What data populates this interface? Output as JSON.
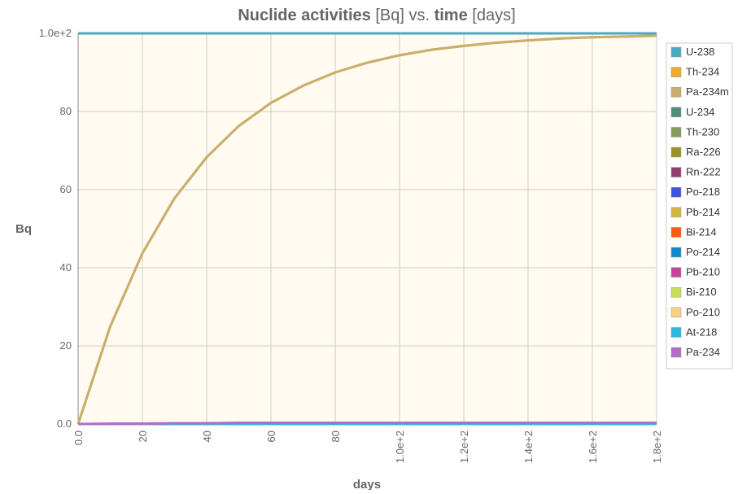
{
  "chart_data": {
    "type": "line",
    "title": [
      "Nuclide activities",
      "[Bq]",
      "vs.",
      "time",
      "[days]"
    ],
    "x_label": "days",
    "y_label": "Bq",
    "x": [
      0,
      10,
      20,
      30,
      40,
      50,
      60,
      70,
      80,
      90,
      100,
      110,
      120,
      130,
      140,
      150,
      160,
      170,
      180
    ],
    "xlim": [
      0,
      180
    ],
    "ylim": [
      0,
      100
    ],
    "xticks": [
      {
        "value": 0,
        "label": "0.0"
      },
      20,
      40,
      60,
      80,
      {
        "value": 100,
        "label": "1.0e+2"
      },
      {
        "value": 120,
        "label": "1.2e+2"
      },
      {
        "value": 140,
        "label": "1.4e+2"
      },
      {
        "value": 160,
        "label": "1.6e+2"
      },
      {
        "value": 180,
        "label": "1.8e+2"
      }
    ],
    "yticks": [
      {
        "value": 0,
        "label": "0.0"
      },
      20,
      40,
      60,
      80,
      {
        "value": 100,
        "label": "1.0e+2"
      }
    ],
    "grid": true,
    "legend": "right",
    "series": [
      {
        "name": "U-238",
        "color": "#4aa9c0",
        "values": [
          100,
          100,
          100,
          100,
          100,
          100,
          100,
          100,
          100,
          100,
          100,
          100,
          100,
          100,
          100,
          100,
          100,
          100,
          100
        ]
      },
      {
        "name": "Th-234",
        "color": "#f0a830",
        "values": [
          0,
          25.0,
          43.7,
          57.8,
          68.3,
          76.3,
          82.2,
          86.6,
          90.0,
          92.5,
          94.4,
          95.8,
          96.8,
          97.6,
          98.2,
          98.7,
          99.0,
          99.2,
          99.4
        ]
      },
      {
        "name": "Pa-234m",
        "color": "#c9ae6f",
        "values": [
          0,
          25.0,
          43.7,
          57.8,
          68.3,
          76.3,
          82.2,
          86.6,
          90.0,
          92.5,
          94.4,
          95.8,
          96.8,
          97.6,
          98.2,
          98.7,
          99.0,
          99.2,
          99.4
        ]
      },
      {
        "name": "U-234",
        "color": "#4e8f79",
        "values": [
          0,
          0,
          0,
          0,
          0,
          0,
          0,
          0,
          0,
          0,
          0,
          0,
          0,
          0,
          0,
          0,
          0,
          0,
          0
        ]
      },
      {
        "name": "Th-230",
        "color": "#889a5e",
        "values": [
          0,
          0,
          0,
          0,
          0,
          0,
          0,
          0,
          0,
          0,
          0,
          0,
          0,
          0,
          0,
          0,
          0,
          0,
          0
        ]
      },
      {
        "name": "Ra-226",
        "color": "#9a9228",
        "values": [
          0,
          0,
          0,
          0,
          0,
          0,
          0,
          0,
          0,
          0,
          0,
          0,
          0,
          0,
          0,
          0,
          0,
          0,
          0
        ]
      },
      {
        "name": "Rn-222",
        "color": "#923e6e",
        "values": [
          0,
          0,
          0,
          0,
          0,
          0,
          0,
          0,
          0,
          0,
          0,
          0,
          0,
          0,
          0,
          0,
          0,
          0,
          0
        ]
      },
      {
        "name": "Po-218",
        "color": "#4055d9",
        "values": [
          0,
          0,
          0,
          0,
          0,
          0,
          0,
          0,
          0,
          0,
          0,
          0,
          0,
          0,
          0,
          0,
          0,
          0,
          0
        ]
      },
      {
        "name": "Pb-214",
        "color": "#d6b443",
        "values": [
          0,
          0,
          0,
          0,
          0,
          0,
          0,
          0,
          0,
          0,
          0,
          0,
          0,
          0,
          0,
          0,
          0,
          0,
          0
        ]
      },
      {
        "name": "Bi-214",
        "color": "#ff5a0d",
        "values": [
          0,
          0,
          0,
          0,
          0,
          0,
          0,
          0,
          0,
          0,
          0,
          0,
          0,
          0,
          0,
          0,
          0,
          0,
          0
        ]
      },
      {
        "name": "Po-214",
        "color": "#1287c9",
        "values": [
          0,
          0,
          0,
          0,
          0,
          0,
          0,
          0,
          0,
          0,
          0,
          0,
          0,
          0,
          0,
          0,
          0,
          0,
          0
        ]
      },
      {
        "name": "Pb-210",
        "color": "#c64599",
        "values": [
          0,
          0,
          0,
          0,
          0,
          0,
          0,
          0,
          0,
          0,
          0,
          0,
          0,
          0,
          0,
          0,
          0,
          0,
          0
        ]
      },
      {
        "name": "Bi-210",
        "color": "#c6dd5a",
        "values": [
          0,
          0,
          0,
          0,
          0,
          0,
          0,
          0,
          0,
          0,
          0,
          0,
          0,
          0,
          0,
          0,
          0,
          0,
          0
        ]
      },
      {
        "name": "Po-210",
        "color": "#f7cf87",
        "values": [
          0,
          0,
          0,
          0,
          0,
          0,
          0,
          0,
          0,
          0,
          0,
          0,
          0,
          0,
          0,
          0,
          0,
          0,
          0
        ]
      },
      {
        "name": "At-218",
        "color": "#2cb8df",
        "values": [
          0,
          0,
          0,
          0,
          0,
          0,
          0,
          0,
          0,
          0,
          0,
          0,
          0,
          0,
          0,
          0,
          0,
          0,
          0
        ]
      },
      {
        "name": "Pa-234",
        "color": "#b46cc8",
        "values": [
          0,
          0.1,
          0.1,
          0.2,
          0.2,
          0.3,
          0.3,
          0.3,
          0.3,
          0.3,
          0.3,
          0.3,
          0.3,
          0.3,
          0.3,
          0.3,
          0.3,
          0.3,
          0.3
        ]
      }
    ]
  }
}
